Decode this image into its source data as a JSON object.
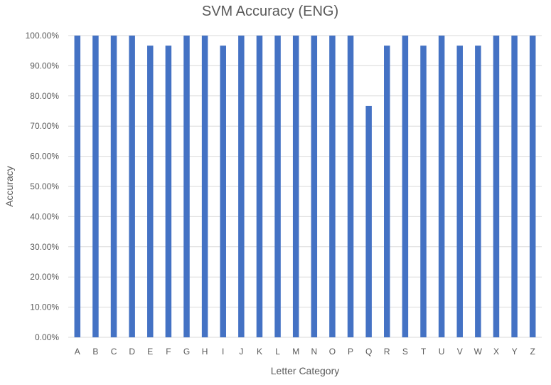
{
  "chart_data": {
    "type": "bar",
    "title": "SVM Accuracy (ENG)",
    "xlabel": "Letter Category",
    "ylabel": "Accuracy",
    "ylim": [
      0,
      100
    ],
    "y_ticks": [
      "0.00%",
      "10.00%",
      "20.00%",
      "30.00%",
      "40.00%",
      "50.00%",
      "60.00%",
      "70.00%",
      "80.00%",
      "90.00%",
      "100.00%"
    ],
    "categories": [
      "A",
      "B",
      "C",
      "D",
      "E",
      "F",
      "G",
      "H",
      "I",
      "J",
      "K",
      "L",
      "M",
      "N",
      "O",
      "P",
      "Q",
      "R",
      "S",
      "T",
      "U",
      "V",
      "W",
      "X",
      "Y",
      "Z"
    ],
    "values": [
      100,
      100,
      100,
      100,
      96.67,
      96.67,
      100,
      100,
      96.67,
      100,
      100,
      100,
      100,
      100,
      100,
      100,
      76.67,
      96.67,
      100,
      96.67,
      100,
      96.67,
      96.67,
      100,
      100,
      100
    ],
    "grid": true,
    "legend": "none",
    "colors": {
      "bar": "#4472c4",
      "grid": "#d9d9d9",
      "text": "#595959"
    }
  }
}
